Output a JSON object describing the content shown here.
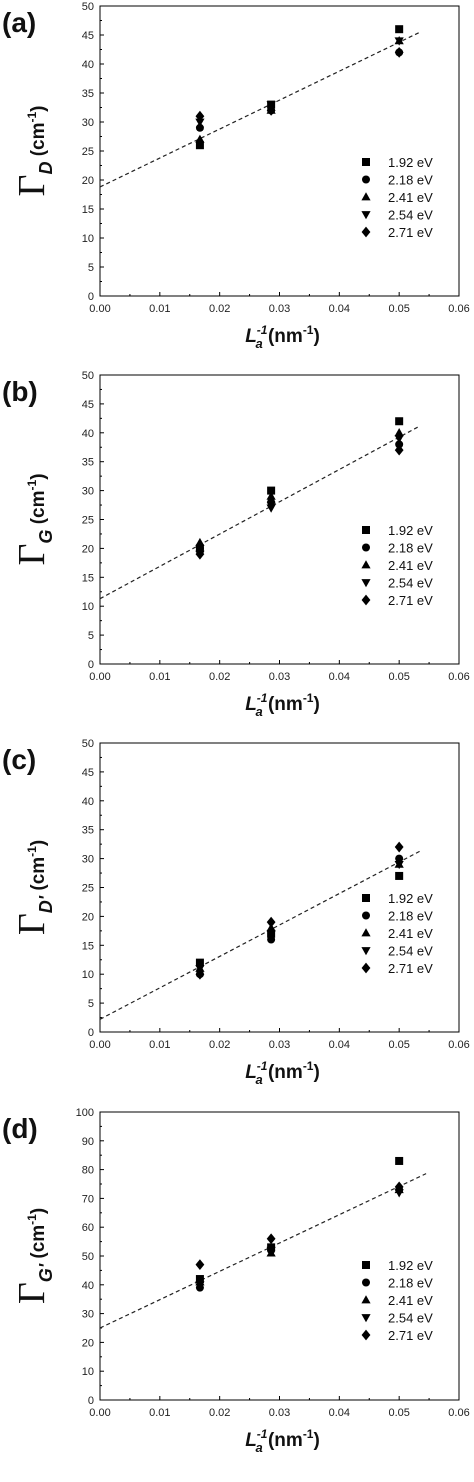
{
  "chart_data": [
    {
      "panel_label": "(a)",
      "type": "scatter",
      "ylabel": {
        "symbol": "Γ",
        "subscript": "D",
        "unit": "cm",
        "unit_exp": "-1"
      },
      "xlabel": {
        "symbol": "L",
        "subscript": "a",
        "exp": "-1",
        "unit": "nm",
        "unit_exp": "-1"
      },
      "xlim": [
        0.0,
        0.06
      ],
      "ylim": [
        0,
        50
      ],
      "xticks": [
        "0.00",
        "0.01",
        "0.02",
        "0.03",
        "0.04",
        "0.05",
        "0.06"
      ],
      "yticks": [
        "0",
        "5",
        "10",
        "15",
        "20",
        "25",
        "30",
        "35",
        "40",
        "45",
        "50"
      ],
      "legend_position": "lower-right",
      "series": [
        {
          "name": "1.92 eV",
          "marker": "square",
          "x": [
            0.0167,
            0.0286,
            0.05
          ],
          "y": [
            26,
            33,
            46
          ]
        },
        {
          "name": "2.18 eV",
          "marker": "circle",
          "x": [
            0.0167,
            0.0286,
            0.05
          ],
          "y": [
            29,
            32,
            42
          ]
        },
        {
          "name": "2.41 eV",
          "marker": "triangle-up",
          "x": [
            0.0167,
            0.0286,
            0.05
          ],
          "y": [
            27,
            32,
            44
          ]
        },
        {
          "name": "2.54 eV",
          "marker": "triangle-down",
          "x": [
            0.0167,
            0.0286,
            0.05
          ],
          "y": [
            30,
            33,
            44
          ]
        },
        {
          "name": "2.71 eV",
          "marker": "diamond",
          "x": [
            0.0167,
            0.0286,
            0.05
          ],
          "y": [
            31,
            32,
            42
          ]
        }
      ],
      "fit_line": {
        "style": "dashed",
        "x": [
          0.0,
          0.0535
        ],
        "y": [
          18.8,
          45.5
        ]
      }
    },
    {
      "panel_label": "(b)",
      "type": "scatter",
      "ylabel": {
        "symbol": "Γ",
        "subscript": "G",
        "unit": "cm",
        "unit_exp": "-1"
      },
      "xlabel": {
        "symbol": "L",
        "subscript": "a",
        "exp": "-1",
        "unit": "nm",
        "unit_exp": "-1"
      },
      "xlim": [
        0.0,
        0.06
      ],
      "ylim": [
        0,
        50
      ],
      "xticks": [
        "0.00",
        "0.01",
        "0.02",
        "0.03",
        "0.04",
        "0.05",
        "0.06"
      ],
      "yticks": [
        "0",
        "5",
        "10",
        "15",
        "20",
        "25",
        "30",
        "35",
        "40",
        "45",
        "50"
      ],
      "legend_position": "lower-right",
      "series": [
        {
          "name": "1.92 eV",
          "marker": "square",
          "x": [
            0.0167,
            0.0286,
            0.05
          ],
          "y": [
            20,
            30,
            42
          ]
        },
        {
          "name": "2.18 eV",
          "marker": "circle",
          "x": [
            0.0167,
            0.0286,
            0.05
          ],
          "y": [
            20,
            28,
            38
          ]
        },
        {
          "name": "2.41 eV",
          "marker": "triangle-up",
          "x": [
            0.0167,
            0.0286,
            0.05
          ],
          "y": [
            21,
            29,
            40
          ]
        },
        {
          "name": "2.54 eV",
          "marker": "triangle-down",
          "x": [
            0.0167,
            0.0286,
            0.05
          ],
          "y": [
            19,
            27,
            39
          ]
        },
        {
          "name": "2.71 eV",
          "marker": "diamond",
          "x": [
            0.0167,
            0.0286,
            0.05
          ],
          "y": [
            19,
            28,
            37
          ]
        }
      ],
      "fit_line": {
        "style": "dashed",
        "x": [
          0.0,
          0.0535
        ],
        "y": [
          11.3,
          41.2
        ]
      }
    },
    {
      "panel_label": "(c)",
      "type": "scatter",
      "ylabel": {
        "symbol": "Γ",
        "subscript": "D'",
        "unit": "cm",
        "unit_exp": "-1"
      },
      "xlabel": {
        "symbol": "L",
        "subscript": "a",
        "exp": "-1",
        "unit": "nm",
        "unit_exp": "-1"
      },
      "xlim": [
        0.0,
        0.06
      ],
      "ylim": [
        0,
        50
      ],
      "xticks": [
        "0.00",
        "0.01",
        "0.02",
        "0.03",
        "0.04",
        "0.05",
        "0.06"
      ],
      "yticks": [
        "0",
        "5",
        "10",
        "15",
        "20",
        "25",
        "30",
        "35",
        "40",
        "45",
        "50"
      ],
      "legend_position": "lower-right",
      "series": [
        {
          "name": "1.92 eV",
          "marker": "square",
          "x": [
            0.0167,
            0.0286,
            0.05
          ],
          "y": [
            12,
            17,
            27
          ]
        },
        {
          "name": "2.18 eV",
          "marker": "circle",
          "x": [
            0.0167,
            0.0286,
            0.05
          ],
          "y": [
            10,
            16,
            30
          ]
        },
        {
          "name": "2.41 eV",
          "marker": "triangle-up",
          "x": [
            0.0167,
            0.0286,
            0.05
          ],
          "y": [
            11,
            18,
            29
          ]
        },
        {
          "name": "2.54 eV",
          "marker": "triangle-down",
          "x": [
            0.0167,
            0.0286,
            0.05
          ],
          "y": [
            11,
            17,
            29
          ]
        },
        {
          "name": "2.71 eV",
          "marker": "diamond",
          "x": [
            0.0167,
            0.0286,
            0.05
          ],
          "y": [
            10,
            19,
            32
          ]
        }
      ],
      "fit_line": {
        "style": "dashed",
        "x": [
          0.0,
          0.0535
        ],
        "y": [
          2.2,
          31.3
        ]
      }
    },
    {
      "panel_label": "(d)",
      "type": "scatter",
      "ylabel": {
        "symbol": "Γ",
        "subscript": "G'",
        "unit": "cm",
        "unit_exp": "-1"
      },
      "xlabel": {
        "symbol": "L",
        "subscript": "a",
        "exp": "-1",
        "unit": "nm",
        "unit_exp": "-1"
      },
      "xlim": [
        0.0,
        0.06
      ],
      "ylim": [
        0,
        100
      ],
      "xticks": [
        "0.00",
        "0.01",
        "0.02",
        "0.03",
        "0.04",
        "0.05",
        "0.06"
      ],
      "yticks": [
        "0",
        "10",
        "20",
        "30",
        "40",
        "50",
        "60",
        "70",
        "80",
        "90",
        "100"
      ],
      "legend_position": "lower-right",
      "series": [
        {
          "name": "1.92 eV",
          "marker": "square",
          "x": [
            0.0167,
            0.0286,
            0.05
          ],
          "y": [
            42,
            53,
            83
          ]
        },
        {
          "name": "2.18 eV",
          "marker": "circle",
          "x": [
            0.0167,
            0.0286,
            0.05
          ],
          "y": [
            39,
            52,
            73
          ]
        },
        {
          "name": "2.41 eV",
          "marker": "triangle-up",
          "x": [
            0.0167,
            0.0286,
            0.05
          ],
          "y": [
            41,
            51,
            73
          ]
        },
        {
          "name": "2.54 eV",
          "marker": "triangle-down",
          "x": [
            0.0167,
            0.0286,
            0.05
          ],
          "y": [
            40,
            52,
            72
          ]
        },
        {
          "name": "2.71 eV",
          "marker": "diamond",
          "x": [
            0.0167,
            0.0286,
            0.05
          ],
          "y": [
            47,
            56,
            74
          ]
        }
      ],
      "fit_line": {
        "style": "dashed",
        "x": [
          0.0,
          0.0545
        ],
        "y": [
          25.0,
          78.6
        ]
      }
    }
  ]
}
